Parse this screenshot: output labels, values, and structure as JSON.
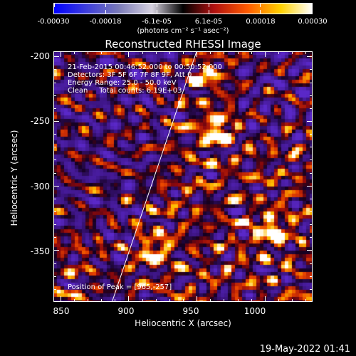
{
  "colorbar": {
    "labels": [
      "-0.00030",
      "-0.00018",
      "-6.1e-05",
      "6.1e-05",
      "0.00018",
      "0.00030"
    ],
    "units": "(photons cm⁻² s⁻¹ asec⁻²)",
    "colors": [
      "#0000ff",
      "#ffffff",
      "#000000",
      "#ff0000",
      "#ffff00",
      "#ffffff"
    ]
  },
  "plot": {
    "title": "Reconstructed RHESSI Image",
    "info": {
      "time_range": "21-Feb-2015 00:46:52.000 to 00:50:52.000",
      "detectors": "Detectors: 3F 5F 6F 7F 8F 9F, Att 0",
      "energy": "Energy Range: 25.0 - 50.0 keV",
      "method": "Clean     Total counts: 6.19E+03"
    },
    "peak": "Position of Peak = [965,-257]",
    "x_axis": {
      "title": "Heliocentric X (arcsec)",
      "ticks": [
        "850",
        "900",
        "950",
        "1000"
      ]
    },
    "y_axis": {
      "title": "Heliocentric Y (arcsec)",
      "ticks": [
        "-200",
        "-250",
        "-300",
        "-350"
      ]
    }
  },
  "chart_data": {
    "type": "heatmap",
    "title": "Reconstructed RHESSI Image",
    "xlabel": "Heliocentric X (arcsec)",
    "ylabel": "Heliocentric Y (arcsec)",
    "xlim": [
      845,
      1035
    ],
    "ylim": [
      -390,
      -196
    ],
    "colorbar_range": [
      -0.0003,
      0.0003
    ],
    "peak_position": [
      965,
      -257
    ],
    "bright_sources": [
      {
        "x": 965,
        "y": -257,
        "level": 1.0
      },
      {
        "x": 1005,
        "y": -335,
        "level": 0.95
      },
      {
        "x": 920,
        "y": -350,
        "level": 0.7
      },
      {
        "x": 955,
        "y": -215,
        "level": 0.65
      }
    ],
    "limb_line": {
      "x": [
        888,
        950
      ],
      "y": [
        -390,
        -196
      ]
    }
  },
  "timestamp": "19-May-2022 01:41"
}
